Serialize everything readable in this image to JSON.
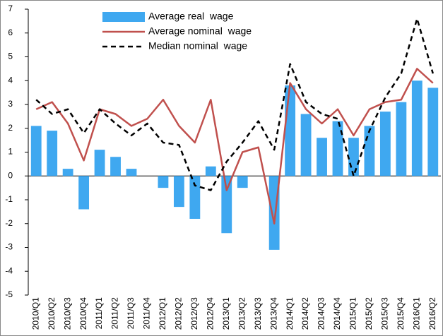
{
  "chart_data": {
    "type": "bar-line",
    "categories": [
      "2010/Q1",
      "2010/Q2",
      "2010/Q3",
      "2010/Q4",
      "2011/Q1",
      "2011/Q2",
      "2011/Q3",
      "2011/Q4",
      "2012/Q1",
      "2012/Q2",
      "2012/Q3",
      "2012/Q4",
      "2013/Q1",
      "2013/Q2",
      "2013/Q3",
      "2013/Q4",
      "2014/Q1",
      "2014/Q2",
      "2014/Q3",
      "2014/Q4",
      "2015/Q1",
      "2015/Q2",
      "2015/Q3",
      "2015/Q4",
      "2016/Q1",
      "2016/Q2"
    ],
    "series": [
      {
        "name": "Average real  wage",
        "type": "bar",
        "color": "#3fa8f0",
        "values": [
          2.1,
          1.9,
          0.3,
          -1.4,
          1.1,
          0.8,
          0.3,
          null,
          -0.5,
          -1.3,
          -1.8,
          0.4,
          -2.4,
          -0.5,
          null,
          -3.1,
          3.8,
          2.6,
          1.6,
          2.3,
          1.6,
          2.1,
          2.7,
          3.1,
          4.0,
          3.7
        ]
      },
      {
        "name": "Average nominal  wage",
        "type": "line",
        "color": "#c0504d",
        "dash": false,
        "values": [
          2.8,
          3.1,
          2.2,
          0.65,
          2.8,
          2.6,
          2.1,
          2.4,
          3.2,
          2.1,
          1.4,
          3.2,
          -0.6,
          1.0,
          1.2,
          -2.0,
          3.9,
          2.8,
          2.2,
          2.8,
          1.7,
          2.8,
          3.1,
          3.2,
          4.5,
          3.9
        ]
      },
      {
        "name": "Median nominal  wage",
        "type": "line",
        "color": "#000000",
        "dash": true,
        "values": [
          3.2,
          2.6,
          2.8,
          1.8,
          2.8,
          2.2,
          1.7,
          2.2,
          1.4,
          1.3,
          -0.4,
          -0.6,
          0.6,
          1.4,
          2.3,
          1.1,
          4.7,
          3.1,
          2.6,
          2.4,
          0.0,
          1.9,
          3.3,
          4.3,
          6.6,
          4.3
        ]
      }
    ],
    "ylim": [
      -5,
      7
    ],
    "yticks": [
      -5,
      -4,
      -3,
      -2,
      -1,
      0,
      1,
      2,
      3,
      4,
      5,
      6,
      7
    ],
    "legend": "top"
  }
}
